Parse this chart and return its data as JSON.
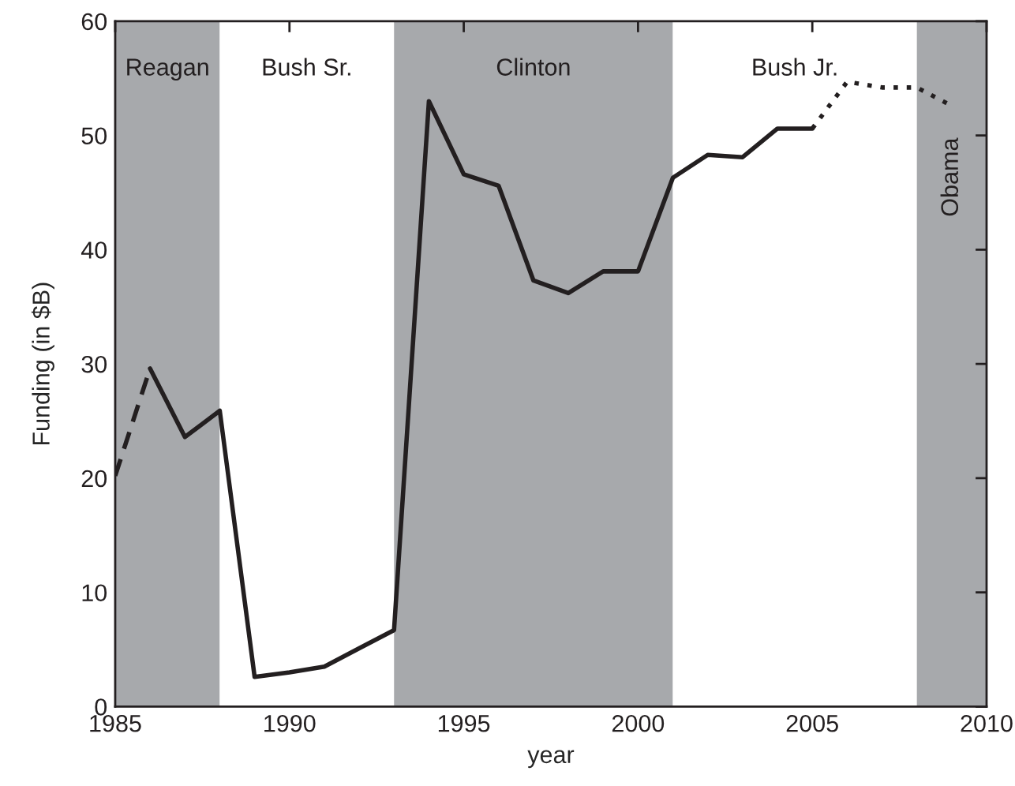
{
  "chart_data": {
    "type": "line",
    "xlabel": "year",
    "ylabel": "Funding (in $B)",
    "xlim": [
      1985,
      2010
    ],
    "xticks": [
      1985,
      1990,
      1995,
      2000,
      2005,
      2010
    ],
    "ylim": [
      0,
      60
    ],
    "yticks": [
      0,
      10,
      20,
      30,
      40,
      50,
      60
    ],
    "grid": false,
    "legend": false,
    "series": [
      {
        "color": "#231f20",
        "line_style": "dashed",
        "x": [
          1985,
          1986
        ],
        "values": [
          20.2,
          29.6
        ]
      },
      {
        "color": "#231f20",
        "line_style": "solid",
        "x": [
          1986,
          1987,
          1988,
          1989,
          1990,
          1991,
          1992,
          1993,
          1994,
          1995,
          1996,
          1997,
          1998,
          1999,
          2000,
          2001,
          2002,
          2003,
          2004,
          2005
        ],
        "values": [
          29.6,
          23.6,
          25.9,
          2.6,
          3.0,
          3.5,
          5.1,
          6.7,
          53.0,
          46.6,
          45.6,
          37.3,
          36.2,
          38.1,
          38.1,
          46.3,
          48.3,
          48.1,
          50.6,
          50.6
        ]
      },
      {
        "color": "#231f20",
        "line_style": "dotted",
        "x": [
          2005,
          2006,
          2007,
          2008,
          2009
        ],
        "values": [
          50.6,
          54.7,
          54.2,
          54.2,
          52.6
        ]
      }
    ],
    "bands": [
      {
        "axis": "x",
        "from": 1985,
        "to": 1988,
        "label": "Reagan",
        "color": "#a7a9ac"
      },
      {
        "axis": "x",
        "from": 1988,
        "to": 1993,
        "label": "Bush Sr.",
        "color": "#ffffff"
      },
      {
        "axis": "x",
        "from": 1993,
        "to": 2001,
        "label": "Clinton",
        "color": "#a7a9ac"
      },
      {
        "axis": "x",
        "from": 2001,
        "to": 2008,
        "label": "Bush Jr.",
        "color": "#ffffff"
      },
      {
        "axis": "x",
        "from": 2008,
        "to": 2010,
        "label": "Obama",
        "color": "#a7a9ac"
      }
    ]
  }
}
